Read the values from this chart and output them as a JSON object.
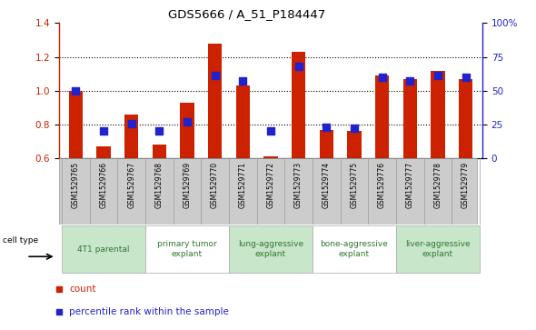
{
  "title": "GDS5666 / A_51_P184447",
  "samples": [
    "GSM1529765",
    "GSM1529766",
    "GSM1529767",
    "GSM1529768",
    "GSM1529769",
    "GSM1529770",
    "GSM1529771",
    "GSM1529772",
    "GSM1529773",
    "GSM1529774",
    "GSM1529775",
    "GSM1529776",
    "GSM1529777",
    "GSM1529778",
    "GSM1529779"
  ],
  "red_values": [
    1.0,
    0.67,
    0.86,
    0.68,
    0.93,
    1.28,
    1.03,
    0.61,
    1.23,
    0.77,
    0.76,
    1.09,
    1.07,
    1.12,
    1.07
  ],
  "blue_values": [
    50,
    20,
    26,
    20,
    27,
    61,
    57,
    20,
    68,
    23,
    22,
    60,
    57,
    61,
    60
  ],
  "ylim_left": [
    0.6,
    1.4
  ],
  "ylim_right": [
    0,
    100
  ],
  "yticks_left": [
    0.6,
    0.8,
    1.0,
    1.2,
    1.4
  ],
  "yticks_right": [
    0,
    25,
    50,
    75,
    100
  ],
  "ytick_labels_right": [
    "0",
    "25",
    "50",
    "75",
    "100%"
  ],
  "groups": [
    {
      "label": "4T1 parental",
      "start": 0,
      "end": 2,
      "color": "#c8e6c9"
    },
    {
      "label": "primary tumor\nexplant",
      "start": 3,
      "end": 5,
      "color": "#ffffff"
    },
    {
      "label": "lung-aggressive\nexplant",
      "start": 6,
      "end": 8,
      "color": "#c8e6c9"
    },
    {
      "label": "bone-aggressive\nexplant",
      "start": 9,
      "end": 11,
      "color": "#ffffff"
    },
    {
      "label": "liver-aggressive\nexplant",
      "start": 12,
      "end": 14,
      "color": "#c8e6c9"
    }
  ],
  "bar_color": "#cc2200",
  "dot_color": "#2222cc",
  "bar_width": 0.5,
  "dot_size": 30,
  "legend_count_label": "count",
  "legend_percentile_label": "percentile rank within the sample",
  "cell_type_label": "cell type"
}
